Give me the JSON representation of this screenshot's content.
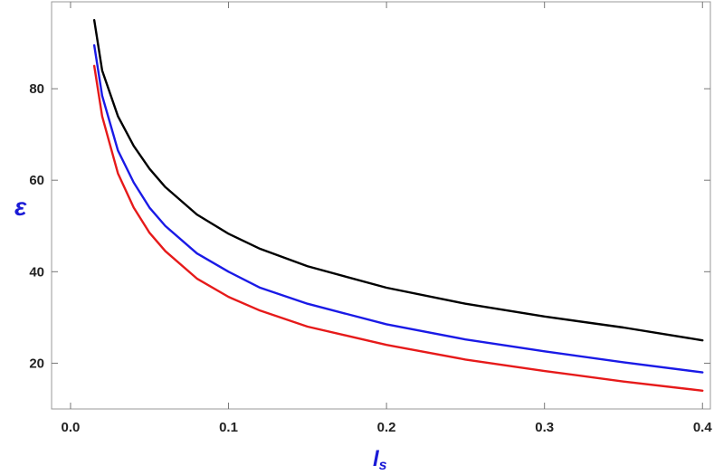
{
  "chart_data": {
    "type": "line",
    "title": "",
    "xlabel": "l",
    "xlabel_sub": "s",
    "ylabel": "ε",
    "xlim": [
      -0.012,
      0.405
    ],
    "ylim": [
      10,
      99
    ],
    "x_ticks": [
      0.0,
      0.1,
      0.2,
      0.3,
      0.4
    ],
    "x_tick_labels": [
      "0.0",
      "0.1",
      "0.2",
      "0.3",
      "0.4"
    ],
    "y_ticks": [
      20,
      40,
      60,
      80
    ],
    "y_tick_labels": [
      "20",
      "40",
      "60",
      "80"
    ],
    "grid": false,
    "x": [
      0.015,
      0.02,
      0.03,
      0.04,
      0.05,
      0.06,
      0.08,
      0.1,
      0.12,
      0.15,
      0.2,
      0.25,
      0.3,
      0.35,
      0.4
    ],
    "series": [
      {
        "color": "#000000",
        "values": [
          95,
          84,
          74,
          67.5,
          62.5,
          58.5,
          52.5,
          48.3,
          45.0,
          41.2,
          36.5,
          33.0,
          30.2,
          27.8,
          25.0
        ]
      },
      {
        "color": "#1a1ae6",
        "values": [
          89.5,
          78.5,
          66.5,
          59.5,
          54.0,
          50.0,
          44.0,
          40.0,
          36.5,
          33.0,
          28.5,
          25.2,
          22.6,
          20.2,
          18.0
        ]
      },
      {
        "color": "#e61a1a",
        "values": [
          85,
          74,
          61.5,
          54.0,
          48.5,
          44.5,
          38.5,
          34.5,
          31.5,
          28.0,
          24.0,
          20.8,
          18.3,
          16.0,
          14.0
        ]
      }
    ]
  }
}
